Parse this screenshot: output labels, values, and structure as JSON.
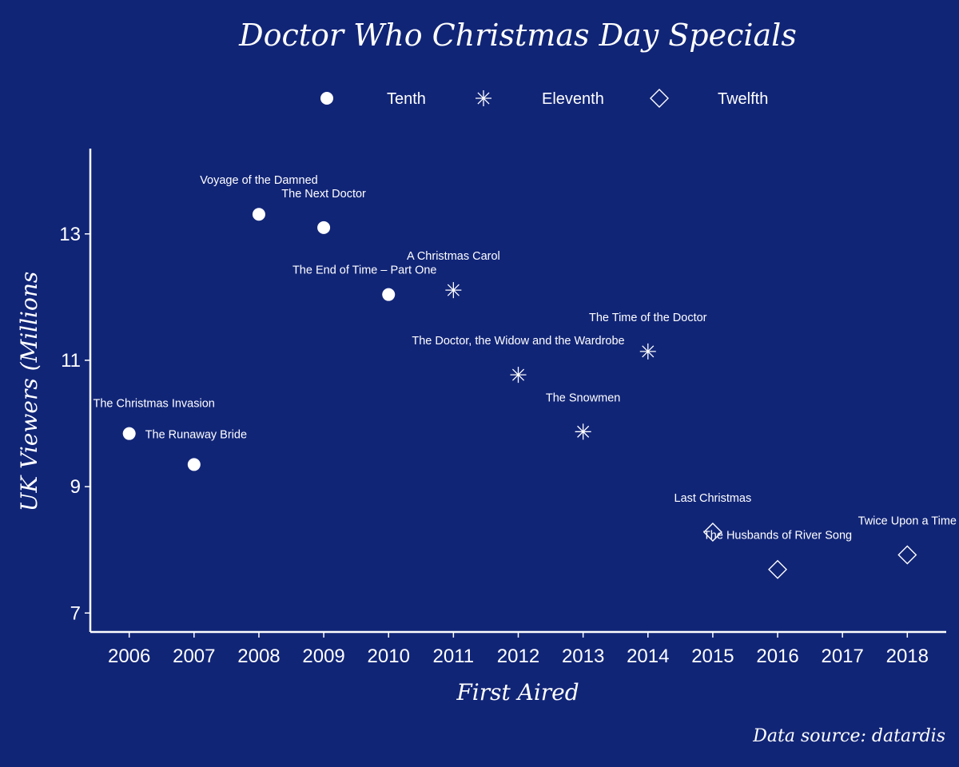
{
  "chart_data": {
    "type": "scatter",
    "title": "Doctor Who Christmas Day Specials",
    "xlabel": "First Aired",
    "ylabel": "UK Viewers (Millions",
    "source": "Data source: datardis",
    "xlim": [
      2005.4,
      2018.6
    ],
    "ylim": [
      6.7,
      14.35
    ],
    "x_ticks": [
      2006,
      2007,
      2008,
      2009,
      2010,
      2011,
      2012,
      2013,
      2014,
      2015,
      2016,
      2017,
      2018
    ],
    "y_ticks": [
      7,
      9,
      11,
      13
    ],
    "grid": false,
    "legend_position": "top",
    "colors": {
      "background": "#112577",
      "foreground": "#ffffff"
    },
    "legend": [
      {
        "name": "Tenth",
        "shape": "circle"
      },
      {
        "name": "Eleventh",
        "shape": "asterisk"
      },
      {
        "name": "Twelfth",
        "shape": "diamond"
      }
    ],
    "series": [
      {
        "name": "Tenth",
        "shape": "circle",
        "points": [
          {
            "x": 2006,
            "y": 9.84,
            "label": "The Christmas Invasion",
            "label_pos": "above"
          },
          {
            "x": 2007,
            "y": 9.35,
            "label": "The Runaway Bride",
            "label_pos": "above-left"
          },
          {
            "x": 2008,
            "y": 13.31,
            "label": "Voyage of the Damned",
            "label_pos": "above"
          },
          {
            "x": 2009,
            "y": 13.1,
            "label": "The Next Doctor",
            "label_pos": "above"
          },
          {
            "x": 2010,
            "y": 12.04,
            "label": "The End of Time – Part One",
            "label_pos": "above-left"
          }
        ]
      },
      {
        "name": "Eleventh",
        "shape": "asterisk",
        "points": [
          {
            "x": 2011,
            "y": 12.11,
            "label": "A Christmas Carol",
            "label_pos": "above"
          },
          {
            "x": 2012,
            "y": 10.77,
            "label": "The Doctor, the Widow and the Wardrobe",
            "label_pos": "above"
          },
          {
            "x": 2013,
            "y": 9.87,
            "label": "The Snowmen",
            "label_pos": "above"
          },
          {
            "x": 2014,
            "y": 11.14,
            "label": "The Time of the Doctor",
            "label_pos": "above"
          }
        ]
      },
      {
        "name": "Twelfth",
        "shape": "diamond",
        "points": [
          {
            "x": 2015,
            "y": 8.28,
            "label": "Last Christmas",
            "label_pos": "above"
          },
          {
            "x": 2016,
            "y": 7.69,
            "label": "The Husbands of River Song",
            "label_pos": "above"
          },
          {
            "x": 2018,
            "y": 7.92,
            "label": "Twice Upon a Time",
            "label_pos": "above"
          }
        ]
      }
    ]
  }
}
